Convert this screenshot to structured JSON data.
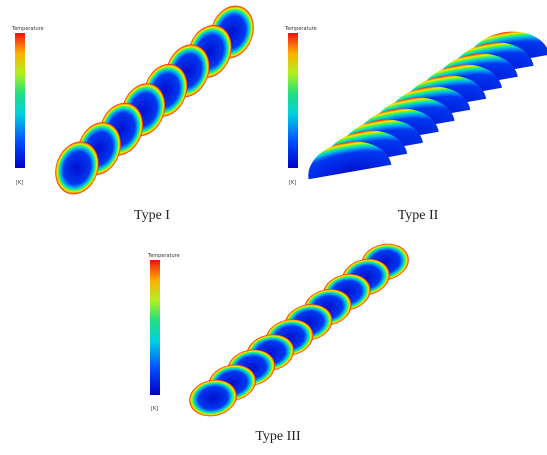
{
  "panels": [
    {
      "label": "Type I",
      "legend_title": "Temperature",
      "unit": "[K]"
    },
    {
      "label": "Type II",
      "legend_title": "Temperature",
      "unit": "[K]"
    },
    {
      "label": "Type III",
      "legend_title": "Temperature",
      "unit": "[K]"
    }
  ]
}
